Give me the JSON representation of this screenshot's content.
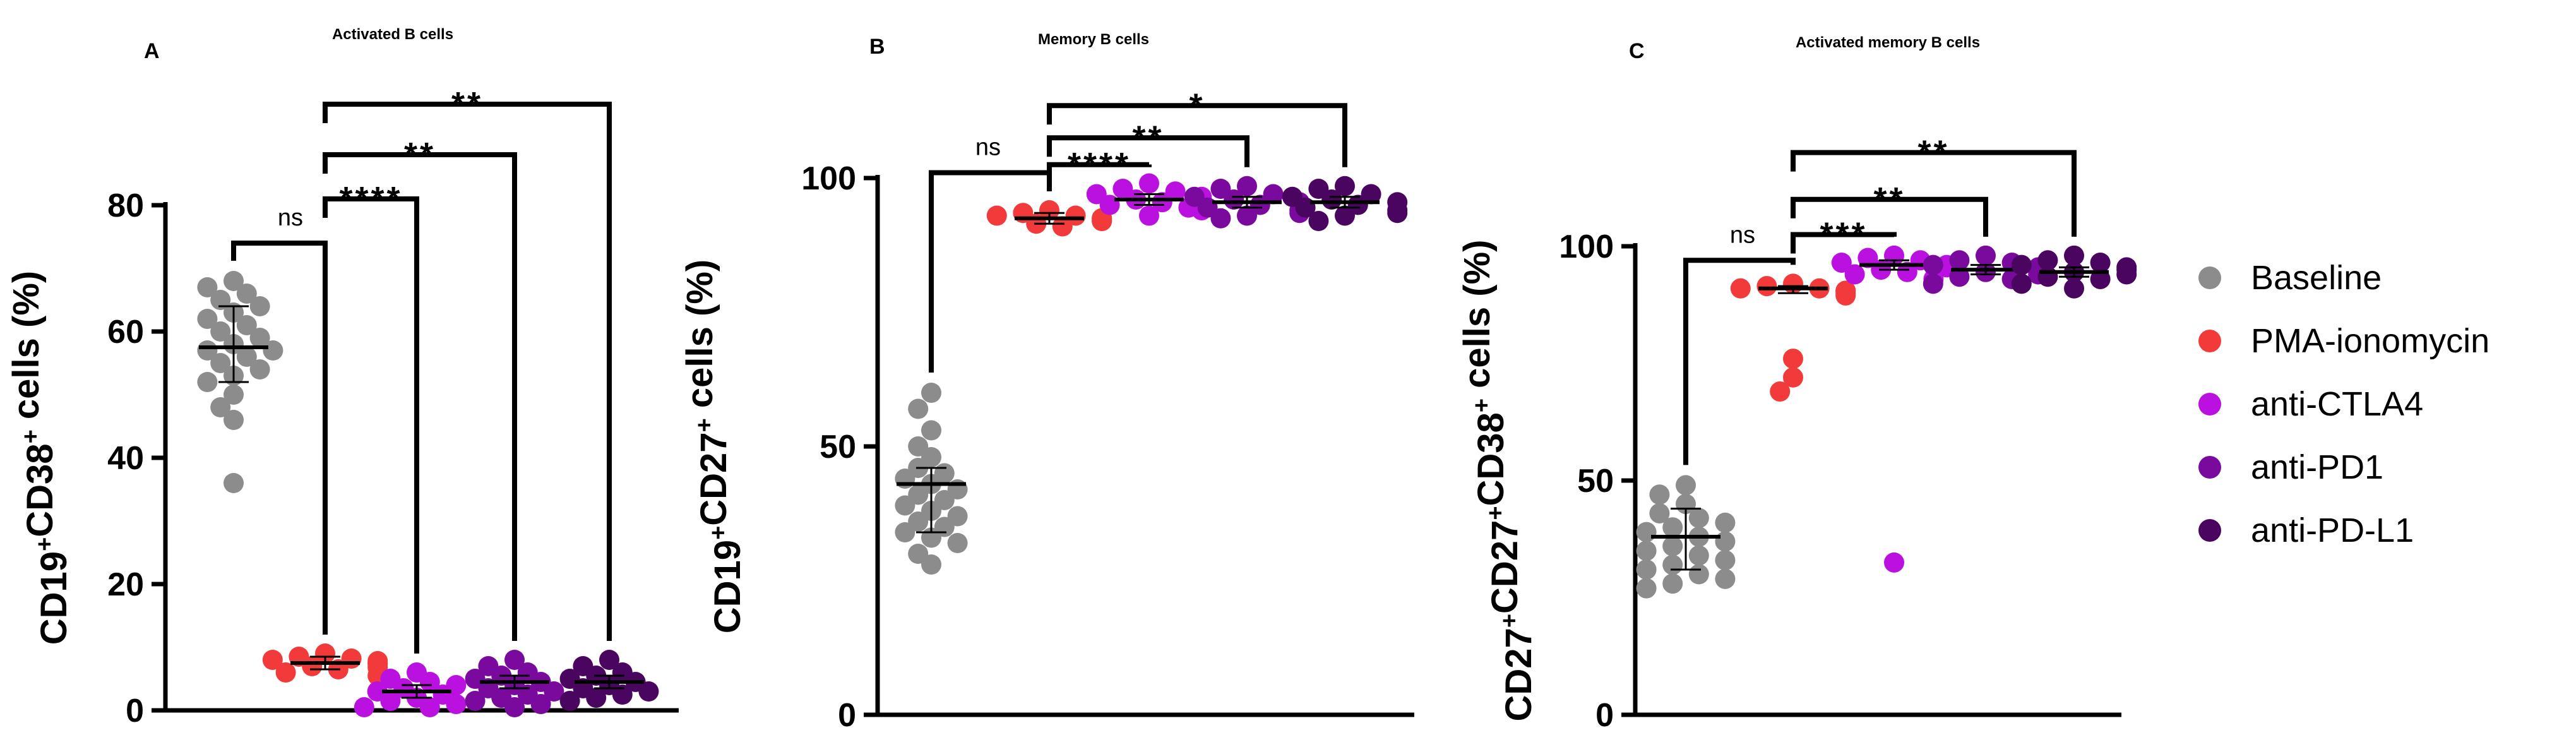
{
  "legend": [
    {
      "name": "Baseline",
      "color": "#8c8c8c"
    },
    {
      "name": "PMA-ionomycin",
      "color": "#f23a3a"
    },
    {
      "name": "anti-CTLA4",
      "color": "#bb11e0"
    },
    {
      "name": "anti-PD1",
      "color": "#7a0a9e"
    },
    {
      "name": "anti-PD-L1",
      "color": "#4a0560"
    }
  ],
  "chart_data": [
    {
      "type": "scatter",
      "letter": "A",
      "title": "Activated B cells",
      "ylabel_parts": [
        "CD19",
        "+",
        "CD38",
        "+",
        " cells (%)"
      ],
      "ylim": [
        0,
        80
      ],
      "yticks": [
        0,
        20,
        40,
        60,
        80
      ],
      "categories": [
        "Baseline",
        "PMA-ionomycin",
        "anti-CTLA4",
        "anti-PD1",
        "anti-PD-L1"
      ],
      "series": [
        {
          "name": "Baseline",
          "mean": 57.5,
          "sd_low": 52,
          "sd_high": 64,
          "values": [
            68,
            67,
            66,
            65,
            64,
            63,
            62,
            61,
            60,
            59,
            58,
            57,
            57,
            56,
            55,
            54,
            53,
            52,
            50,
            48,
            46,
            36
          ]
        },
        {
          "name": "PMA-ionomycin",
          "mean": 7.5,
          "sd_low": 6.5,
          "sd_high": 8.5,
          "values": [
            9,
            8.5,
            8.2,
            8,
            7.8,
            7.5,
            7.3,
            7,
            6.8,
            6.5,
            6,
            5.5
          ]
        },
        {
          "name": "anti-CTLA4",
          "mean": 3,
          "sd_low": 2,
          "sd_high": 4,
          "values": [
            6,
            5,
            4.5,
            4,
            3.5,
            3,
            2.5,
            2,
            1.5,
            1,
            0.5,
            0.5
          ]
        },
        {
          "name": "anti-PD1",
          "mean": 4.5,
          "sd_low": 3.5,
          "sd_high": 5.5,
          "values": [
            8,
            7,
            6,
            5.5,
            5,
            4.5,
            4,
            3.5,
            3,
            2.5,
            2,
            1.5,
            1,
            0.5
          ]
        },
        {
          "name": "anti-PD-L1",
          "mean": 4.5,
          "sd_low": 3.5,
          "sd_high": 5.5,
          "values": [
            8,
            7,
            6,
            5.5,
            5,
            4.5,
            4,
            3.5,
            3,
            2.5,
            2,
            1.5
          ]
        }
      ],
      "comparisons": [
        {
          "from": 0,
          "to": 1,
          "label": "ns",
          "level": 74
        },
        {
          "from": 1,
          "to": 2,
          "label": "****",
          "level": 81
        },
        {
          "from": 1,
          "to": 3,
          "label": "**",
          "level": 88
        },
        {
          "from": 1,
          "to": 4,
          "label": "**",
          "level": 96
        }
      ]
    },
    {
      "type": "scatter",
      "letter": "B",
      "title": "Memory B cells",
      "ylabel_parts": [
        "CD19",
        "+",
        "CD27",
        "+",
        " cells (%)"
      ],
      "ylim": [
        0,
        100
      ],
      "yticks": [
        0,
        50,
        100
      ],
      "categories": [
        "Baseline",
        "PMA-ionomycin",
        "anti-CTLA4",
        "anti-PD1",
        "anti-PD-L1"
      ],
      "series": [
        {
          "name": "Baseline",
          "mean": 43,
          "sd_low": 34,
          "sd_high": 46,
          "values": [
            60,
            57,
            53,
            50,
            48,
            46,
            45,
            44,
            43,
            42,
            41,
            40,
            39,
            38,
            37,
            36,
            35,
            34,
            33,
            32,
            30,
            28
          ]
        },
        {
          "name": "PMA-ionomycin",
          "mean": 92.5,
          "sd_low": 91.5,
          "sd_high": 93.5,
          "values": [
            94,
            93.5,
            93,
            93,
            92.5,
            92.5,
            92,
            92,
            91.5,
            91
          ]
        },
        {
          "name": "anti-CTLA4",
          "mean": 96,
          "sd_low": 95,
          "sd_high": 97,
          "values": [
            99,
            98,
            97.5,
            97,
            96.5,
            96,
            95.5,
            95,
            94.5,
            94,
            93
          ]
        },
        {
          "name": "anti-PD1",
          "mean": 95.5,
          "sd_low": 94.5,
          "sd_high": 96.5,
          "values": [
            98.5,
            98,
            97,
            96.5,
            96,
            95.5,
            95,
            94.5,
            94,
            93.5,
            93,
            92.5
          ]
        },
        {
          "name": "anti-PD-L1",
          "mean": 95.5,
          "sd_low": 94.5,
          "sd_high": 96.5,
          "values": [
            98.5,
            98,
            97,
            96.5,
            96,
            95.5,
            95,
            94.5,
            94,
            93.5,
            93,
            92
          ]
        }
      ],
      "comparisons": [
        {
          "from": 0,
          "to": 1,
          "label": "ns",
          "level": 101
        },
        {
          "from": 1,
          "to": 2,
          "label": "****",
          "level": 102.5
        },
        {
          "from": 1,
          "to": 3,
          "label": "**",
          "level": 107.5
        },
        {
          "from": 1,
          "to": 4,
          "label": "*",
          "level": 113.5
        }
      ]
    },
    {
      "type": "scatter",
      "letter": "C",
      "title": "Activated memory B cells",
      "ylabel_parts": [
        "CD27",
        "+",
        "CD27",
        "+",
        "CD38",
        "+",
        " cells (%)"
      ],
      "ylim": [
        0,
        100
      ],
      "yticks": [
        0,
        50,
        100
      ],
      "categories": [
        "Baseline",
        "PMA-ionomycin",
        "anti-CTLA4",
        "anti-PD1",
        "anti-PD-L1"
      ],
      "series": [
        {
          "name": "Baseline",
          "mean": 38,
          "sd_low": 31,
          "sd_high": 44,
          "values": [
            49,
            47,
            45,
            43,
            42,
            41,
            40,
            39,
            38,
            37,
            36,
            35,
            34,
            33,
            32,
            31,
            30,
            29,
            28,
            27
          ]
        },
        {
          "name": "PMA-ionomycin",
          "mean": 91,
          "sd_low": 90,
          "sd_high": 91.5,
          "values": [
            92,
            91.5,
            91,
            91,
            90.5,
            90.5,
            90,
            89.5,
            76,
            72,
            69
          ]
        },
        {
          "name": "anti-CTLA4",
          "mean": 96,
          "sd_low": 95,
          "sd_high": 97,
          "values": [
            98,
            97.5,
            97,
            96.5,
            96,
            95.5,
            95,
            94.5,
            94,
            93,
            32.5
          ]
        },
        {
          "name": "anti-PD1",
          "mean": 95,
          "sd_low": 94,
          "sd_high": 96,
          "values": [
            98,
            97,
            96.5,
            96,
            95.5,
            95,
            94.5,
            94,
            93.5,
            93,
            92
          ]
        },
        {
          "name": "anti-PD-L1",
          "mean": 94.5,
          "sd_low": 93.5,
          "sd_high": 95.5,
          "values": [
            98,
            97,
            96.5,
            96,
            95.5,
            95,
            94.5,
            94,
            93.5,
            93,
            92,
            91
          ]
        }
      ],
      "comparisons": [
        {
          "from": 0,
          "to": 1,
          "label": "ns",
          "level": 97
        },
        {
          "from": 1,
          "to": 2,
          "label": "***",
          "level": 102.5
        },
        {
          "from": 1,
          "to": 3,
          "label": "**",
          "level": 110
        },
        {
          "from": 1,
          "to": 4,
          "label": "**",
          "level": 120
        }
      ]
    }
  ]
}
